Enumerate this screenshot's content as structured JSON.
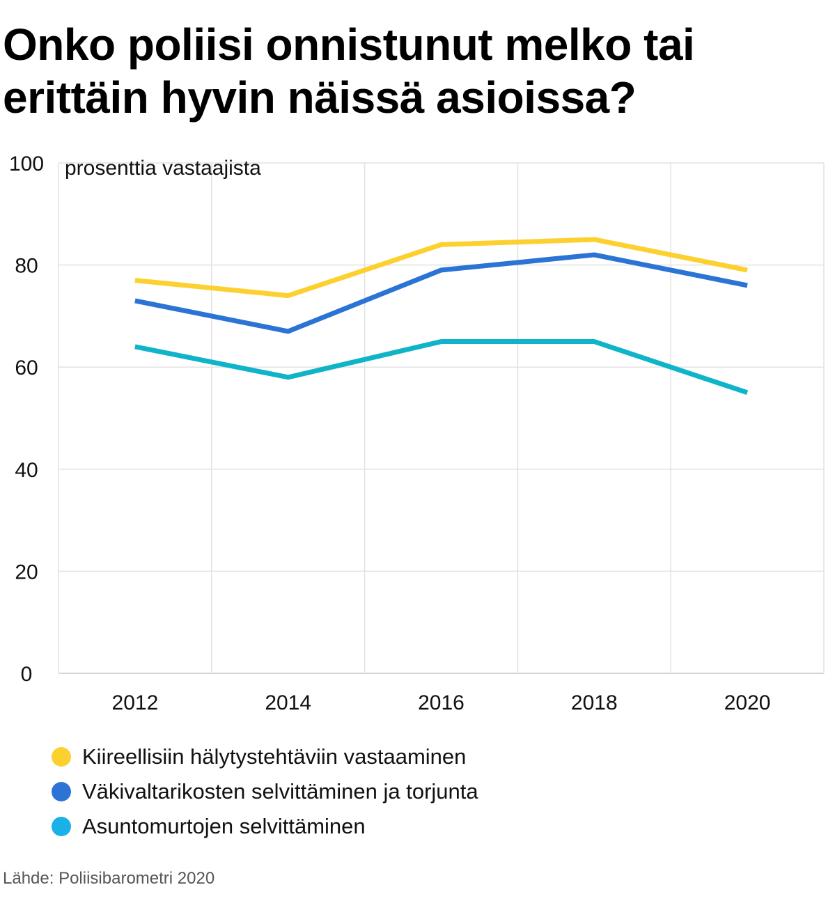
{
  "title": "Onko poliisi onnistunut melko tai erittäin hyvin näissä asioissa?",
  "source": "Lähde: Poliisibarometri 2020",
  "chart_data": {
    "type": "line",
    "ylabel": "prosenttia vastaajista",
    "ylim": [
      0,
      100
    ],
    "yticks": [
      0,
      20,
      40,
      60,
      80,
      100
    ],
    "xlim": [
      2011,
      2021
    ],
    "x": [
      2012,
      2014,
      2016,
      2018,
      2020
    ],
    "xticks": [
      "2012",
      "2014",
      "2016",
      "2018",
      "2020"
    ],
    "grid": true,
    "legend_position": "bottom",
    "series": [
      {
        "name": "Kiireellisiin hälytystehtäviin vastaaminen",
        "color": "#fcd12f",
        "values": [
          77,
          74,
          84,
          85,
          79
        ]
      },
      {
        "name": "Väkivaltarikosten selvittäminen ja torjunta",
        "color": "#2b73d4",
        "values": [
          73,
          67,
          79,
          82,
          76
        ]
      },
      {
        "name": "Asuntomurtojen selvittäminen",
        "color": "#0fb4c8",
        "values": [
          64,
          58,
          65,
          65,
          55
        ]
      }
    ],
    "legend_swatch_colors": [
      "#fcd12f",
      "#2b73d4",
      "#1ab0e8"
    ]
  }
}
